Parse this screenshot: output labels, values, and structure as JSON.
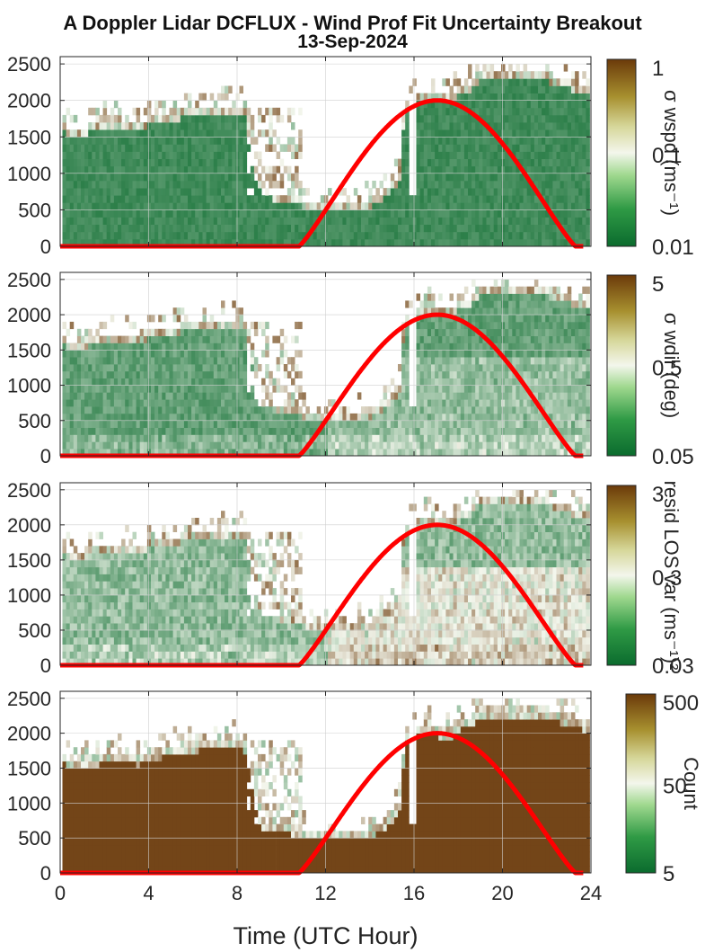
{
  "figure": {
    "title_line1": "A Doppler Lidar DCFLUX - Wind Prof Fit Uncertainty Breakout",
    "title_line2": "13-Sep-2024",
    "xlabel": "Time (UTC Hour)"
  },
  "colors": {
    "low": "#0b6b2e",
    "mid": "#f3f6ec",
    "high": "#6b3a0a",
    "overlay": "#ff0000"
  },
  "chart_data": [
    {
      "type": "heatmap",
      "colorbar_label": "σ wspd (ms⁻¹)",
      "colorbar_ticks": [
        "1",
        "0.1",
        "0.01"
      ],
      "colorbar_scale": "log",
      "xlim": [
        0,
        24
      ],
      "ylim": [
        0,
        2600
      ],
      "yticks": [
        "0",
        "500",
        "1000",
        "1500",
        "2000",
        "2500"
      ],
      "fill_level": 0.12,
      "grid": true
    },
    {
      "type": "heatmap",
      "colorbar_label": "σ wdir (deg)",
      "colorbar_ticks": [
        "5",
        "0.5",
        "0.05"
      ],
      "colorbar_scale": "log",
      "xlim": [
        0,
        24
      ],
      "ylim": [
        0,
        2600
      ],
      "yticks": [
        "0",
        "500",
        "1000",
        "1500",
        "2000",
        "2500"
      ],
      "fill_level": 0.2,
      "grid": true
    },
    {
      "type": "heatmap",
      "colorbar_label": "resid LOS var (ms⁻¹)²",
      "colorbar_ticks": [
        "3",
        "0.3",
        "0.03"
      ],
      "colorbar_scale": "log",
      "xlim": [
        0,
        24
      ],
      "ylim": [
        0,
        2600
      ],
      "yticks": [
        "0",
        "500",
        "1000",
        "1500",
        "2000",
        "2500"
      ],
      "fill_level": 0.3,
      "grid": true
    },
    {
      "type": "heatmap",
      "colorbar_label": "Count",
      "colorbar_ticks": [
        "500",
        "50",
        "5"
      ],
      "colorbar_scale": "log",
      "xlim": [
        0,
        24
      ],
      "ylim": [
        0,
        2600
      ],
      "yticks": [
        "0",
        "500",
        "1000",
        "1500",
        "2000",
        "2500"
      ],
      "xticks": [
        "0",
        "4",
        "8",
        "12",
        "16",
        "20",
        "24"
      ],
      "fill_level": 0.97,
      "grid": true
    }
  ],
  "boundary_layer_top": {
    "t": [
      0,
      0.2,
      0.5,
      1.0,
      2.0,
      3.0,
      3.5,
      4.0,
      5.0,
      6.0,
      7.0,
      8.0,
      8.2,
      8.5,
      9.0,
      9.5,
      10.0,
      11.0,
      12.0,
      13.0,
      14.0,
      14.5,
      15.0,
      15.3,
      15.5,
      16.0,
      16.5,
      17.0,
      17.5,
      18.0,
      18.5,
      19.0,
      20.0,
      21.0,
      22.0,
      22.5,
      23.0,
      23.5
    ],
    "h": [
      1750,
      1600,
      1580,
      1570,
      1700,
      1680,
      1640,
      1720,
      1780,
      1840,
      1880,
      1900,
      1900,
      1500,
      750,
      700,
      680,
      580,
      560,
      570,
      600,
      700,
      830,
      1000,
      1950,
      2050,
      2100,
      2060,
      2000,
      2150,
      2200,
      2350,
      2350,
      2330,
      2300,
      2250,
      2200,
      2150
    ]
  },
  "overlay_curve": {
    "description_free": true,
    "t_start": 10.8,
    "t_peak": 17.1,
    "t_end": 23.3,
    "peak": 2000
  }
}
